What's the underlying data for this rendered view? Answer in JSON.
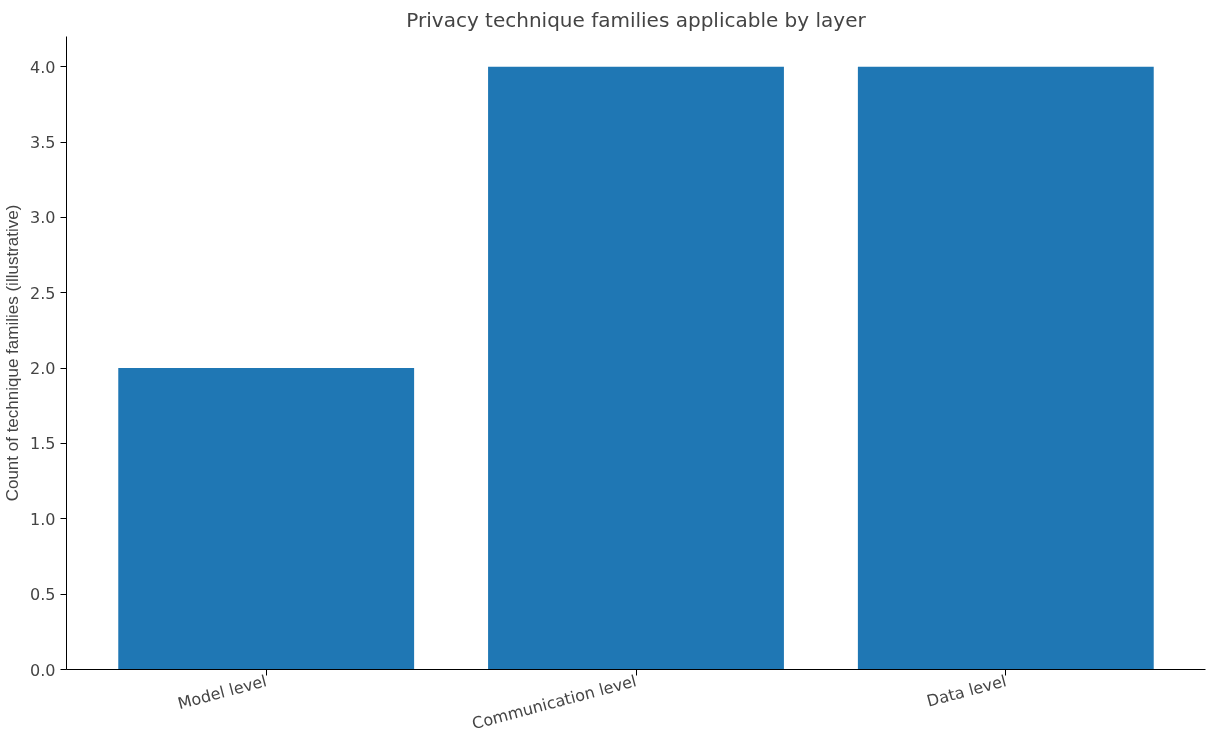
{
  "chart_data": {
    "type": "bar",
    "title": "Privacy technique families applicable by layer",
    "ylabel": "Count of technique families (illustrative)",
    "categories": [
      "Model level",
      "Communication level",
      "Data level"
    ],
    "series": [
      {
        "color": "#1f77b4",
        "values": [
          2,
          4,
          4
        ]
      }
    ],
    "ylim": [
      0,
      4.2
    ],
    "yticks": [
      {
        "value": 0,
        "label": "0.0"
      },
      0.5,
      {
        "value": 1,
        "label": "1.0"
      },
      1.5,
      {
        "value": 2,
        "label": "2.0"
      },
      2.5,
      {
        "value": 3,
        "label": "3.0"
      },
      3.5,
      {
        "value": 4,
        "label": "4.0"
      }
    ],
    "grid": false
  }
}
